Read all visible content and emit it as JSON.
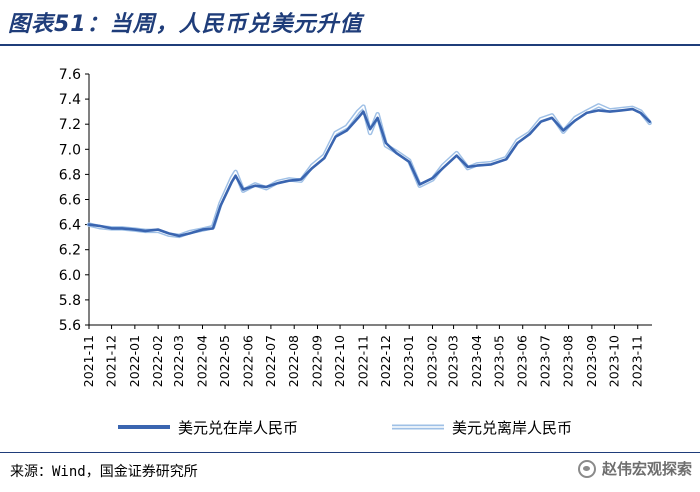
{
  "title": "图表51：当周，人民币兑美元升值",
  "source": "来源：Wind，国金证券研究所",
  "watermark": "赵伟宏观探索",
  "colors": {
    "title": "#1f3d7a",
    "onshore": "#3a65b0",
    "offshore": "#9fc0e6",
    "axis": "#000000"
  },
  "chart_data": {
    "type": "line",
    "title": "",
    "xlabel": "",
    "ylabel": "",
    "ylim": [
      5.6,
      7.6
    ],
    "yticks": [
      "5.6",
      "5.8",
      "6.0",
      "6.2",
      "6.4",
      "6.6",
      "6.8",
      "7.0",
      "7.2",
      "7.4",
      "7.6"
    ],
    "xticks": [
      "2021-11",
      "2021-12",
      "2022-01",
      "2022-02",
      "2022-03",
      "2022-04",
      "2022-05",
      "2022-06",
      "2022-07",
      "2022-08",
      "2022-09",
      "2022-10",
      "2022-11",
      "2022-12",
      "2023-01",
      "2023-02",
      "2023-03",
      "2023-04",
      "2023-05",
      "2023-06",
      "2023-07",
      "2023-08",
      "2023-09",
      "2023-10",
      "2023-11"
    ],
    "grid": false,
    "legend_position": "bottom",
    "series": [
      {
        "name": "美元兑在岸人民币",
        "points": [
          [
            "2021-11-01",
            6.4
          ],
          [
            "2021-11-15",
            6.39
          ],
          [
            "2021-12-01",
            6.37
          ],
          [
            "2021-12-15",
            6.37
          ],
          [
            "2022-01-01",
            6.36
          ],
          [
            "2022-01-15",
            6.35
          ],
          [
            "2022-02-01",
            6.36
          ],
          [
            "2022-02-15",
            6.33
          ],
          [
            "2022-03-01",
            6.31
          ],
          [
            "2022-03-15",
            6.33
          ],
          [
            "2022-04-01",
            6.36
          ],
          [
            "2022-04-15",
            6.37
          ],
          [
            "2022-04-25",
            6.55
          ],
          [
            "2022-05-10",
            6.74
          ],
          [
            "2022-05-15",
            6.79
          ],
          [
            "2022-05-25",
            6.68
          ],
          [
            "2022-06-10",
            6.71
          ],
          [
            "2022-06-25",
            6.7
          ],
          [
            "2022-07-10",
            6.73
          ],
          [
            "2022-07-25",
            6.75
          ],
          [
            "2022-08-10",
            6.76
          ],
          [
            "2022-08-25",
            6.85
          ],
          [
            "2022-09-10",
            6.93
          ],
          [
            "2022-09-25",
            7.1
          ],
          [
            "2022-10-10",
            7.15
          ],
          [
            "2022-10-25",
            7.25
          ],
          [
            "2022-11-01",
            7.3
          ],
          [
            "2022-11-10",
            7.16
          ],
          [
            "2022-11-20",
            7.25
          ],
          [
            "2022-12-01",
            7.05
          ],
          [
            "2022-12-15",
            6.97
          ],
          [
            "2023-01-01",
            6.9
          ],
          [
            "2023-01-15",
            6.72
          ],
          [
            "2023-02-01",
            6.77
          ],
          [
            "2023-02-15",
            6.85
          ],
          [
            "2023-03-05",
            6.95
          ],
          [
            "2023-03-20",
            6.86
          ],
          [
            "2023-04-01",
            6.87
          ],
          [
            "2023-04-20",
            6.88
          ],
          [
            "2023-05-10",
            6.92
          ],
          [
            "2023-05-25",
            7.05
          ],
          [
            "2023-06-10",
            7.12
          ],
          [
            "2023-06-25",
            7.22
          ],
          [
            "2023-07-10",
            7.25
          ],
          [
            "2023-07-25",
            7.15
          ],
          [
            "2023-08-10",
            7.23
          ],
          [
            "2023-08-25",
            7.29
          ],
          [
            "2023-09-10",
            7.31
          ],
          [
            "2023-09-25",
            7.3
          ],
          [
            "2023-10-10",
            7.31
          ],
          [
            "2023-10-25",
            7.32
          ],
          [
            "2023-11-05",
            7.29
          ],
          [
            "2023-11-17",
            7.22
          ]
        ]
      },
      {
        "name": "美元兑离岸人民币",
        "points": [
          [
            "2021-11-01",
            6.4
          ],
          [
            "2021-11-15",
            6.38
          ],
          [
            "2021-12-01",
            6.37
          ],
          [
            "2021-12-15",
            6.37
          ],
          [
            "2022-01-01",
            6.36
          ],
          [
            "2022-01-15",
            6.35
          ],
          [
            "2022-02-01",
            6.35
          ],
          [
            "2022-02-15",
            6.32
          ],
          [
            "2022-03-01",
            6.31
          ],
          [
            "2022-03-15",
            6.34
          ],
          [
            "2022-04-01",
            6.36
          ],
          [
            "2022-04-15",
            6.38
          ],
          [
            "2022-04-25",
            6.57
          ],
          [
            "2022-05-10",
            6.77
          ],
          [
            "2022-05-15",
            6.82
          ],
          [
            "2022-05-25",
            6.67
          ],
          [
            "2022-06-10",
            6.72
          ],
          [
            "2022-06-25",
            6.69
          ],
          [
            "2022-07-10",
            6.74
          ],
          [
            "2022-07-25",
            6.76
          ],
          [
            "2022-08-10",
            6.75
          ],
          [
            "2022-08-25",
            6.87
          ],
          [
            "2022-09-10",
            6.95
          ],
          [
            "2022-09-25",
            7.13
          ],
          [
            "2022-10-10",
            7.18
          ],
          [
            "2022-10-25",
            7.3
          ],
          [
            "2022-11-01",
            7.34
          ],
          [
            "2022-11-10",
            7.13
          ],
          [
            "2022-11-20",
            7.28
          ],
          [
            "2022-12-01",
            7.03
          ],
          [
            "2022-12-15",
            6.98
          ],
          [
            "2023-01-01",
            6.91
          ],
          [
            "2023-01-15",
            6.71
          ],
          [
            "2023-02-01",
            6.76
          ],
          [
            "2023-02-15",
            6.87
          ],
          [
            "2023-03-05",
            6.97
          ],
          [
            "2023-03-20",
            6.85
          ],
          [
            "2023-04-01",
            6.88
          ],
          [
            "2023-04-20",
            6.89
          ],
          [
            "2023-05-10",
            6.93
          ],
          [
            "2023-05-25",
            7.07
          ],
          [
            "2023-06-10",
            7.13
          ],
          [
            "2023-06-25",
            7.24
          ],
          [
            "2023-07-10",
            7.27
          ],
          [
            "2023-07-25",
            7.14
          ],
          [
            "2023-08-10",
            7.25
          ],
          [
            "2023-08-25",
            7.3
          ],
          [
            "2023-09-10",
            7.35
          ],
          [
            "2023-09-25",
            7.31
          ],
          [
            "2023-10-10",
            7.32
          ],
          [
            "2023-10-25",
            7.33
          ],
          [
            "2023-11-05",
            7.3
          ],
          [
            "2023-11-17",
            7.21
          ]
        ]
      }
    ]
  }
}
